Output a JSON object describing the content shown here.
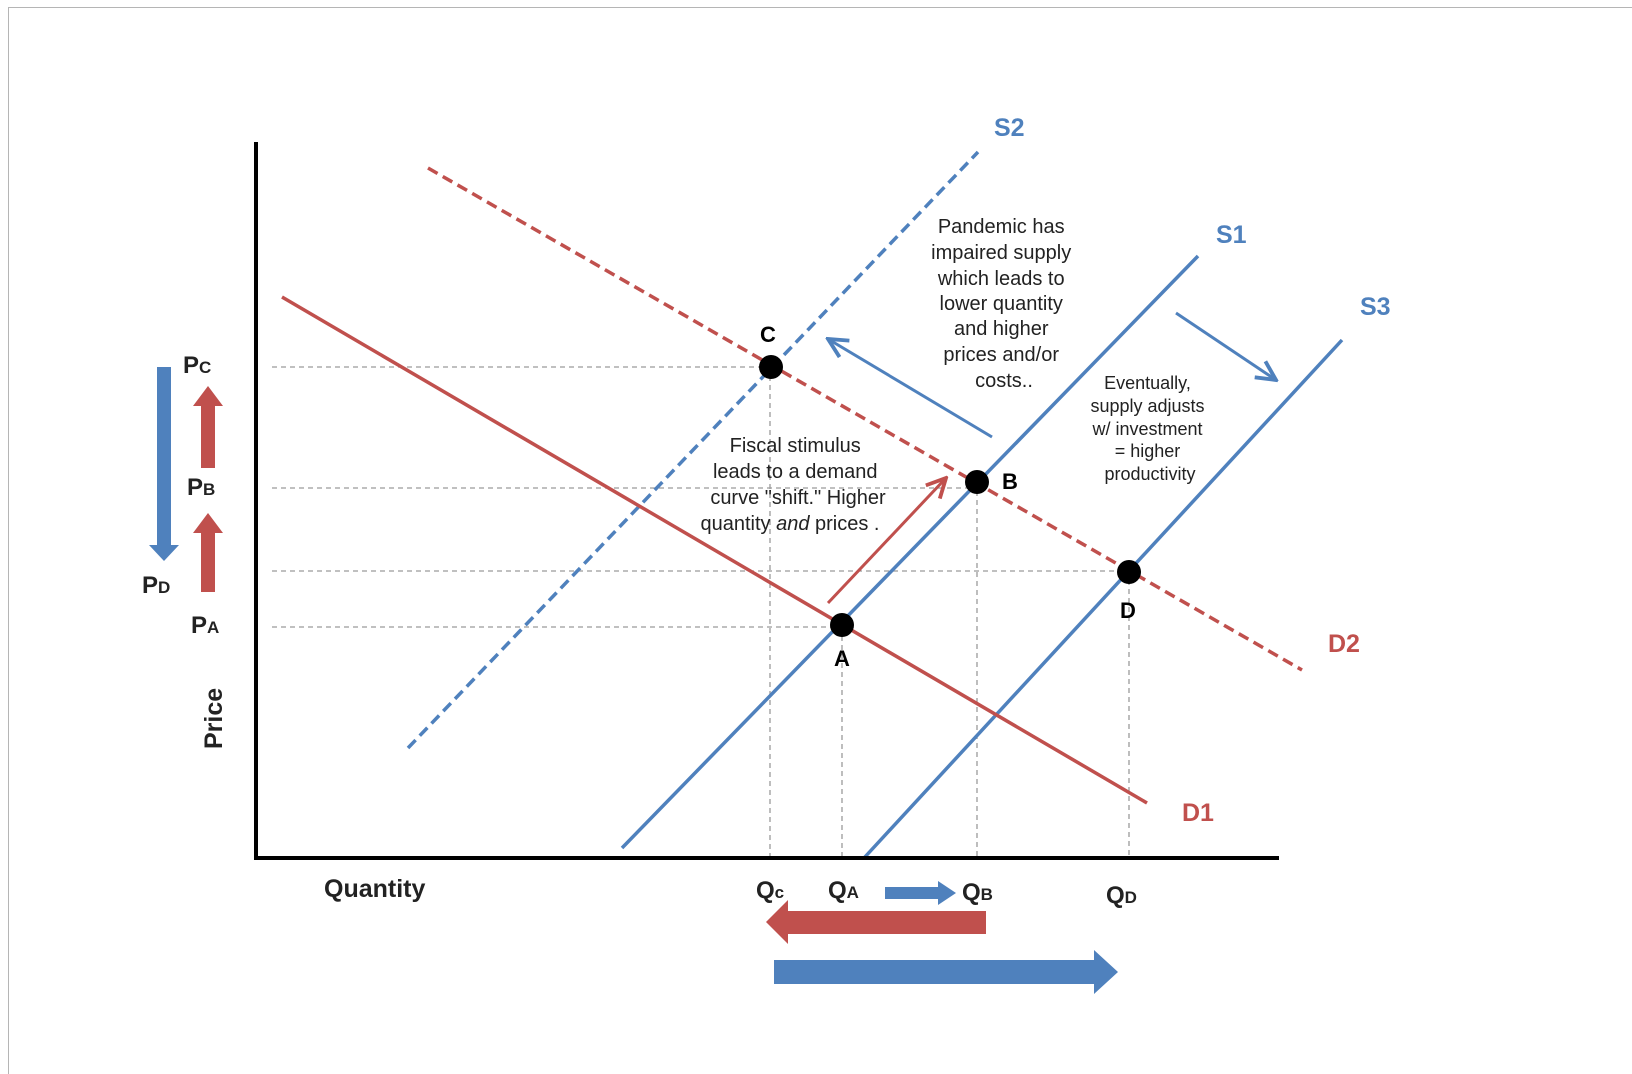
{
  "colors": {
    "supply": "#4f81bd",
    "demand": "#c0504d",
    "axis": "#000000",
    "guide": "#9a9a9a"
  },
  "axes": {
    "x_label": "Quantity",
    "y_label": "Price"
  },
  "curves": [
    {
      "id": "s1",
      "label": "S1",
      "kind": "supply",
      "style": "solid"
    },
    {
      "id": "s2",
      "label": "S2",
      "kind": "supply",
      "style": "dashed"
    },
    {
      "id": "s3",
      "label": "S3",
      "kind": "supply",
      "style": "solid"
    },
    {
      "id": "d1",
      "label": "D1",
      "kind": "demand",
      "style": "solid"
    },
    {
      "id": "d2",
      "label": "D2",
      "kind": "demand",
      "style": "dashed"
    }
  ],
  "points": [
    {
      "id": "a",
      "label": "A"
    },
    {
      "id": "b",
      "label": "B"
    },
    {
      "id": "c",
      "label": "C"
    },
    {
      "id": "d",
      "label": "D"
    }
  ],
  "price_ticks": [
    {
      "id": "pc",
      "main": "P",
      "sub": "C"
    },
    {
      "id": "pb",
      "main": "P",
      "sub": "B"
    },
    {
      "id": "pd",
      "main": "P",
      "sub": "D"
    },
    {
      "id": "pa",
      "main": "P",
      "sub": "A"
    }
  ],
  "quantity_ticks": [
    {
      "id": "qc",
      "main": "Q",
      "sub": "c"
    },
    {
      "id": "qa",
      "main": "Q",
      "sub": "A"
    },
    {
      "id": "qb",
      "main": "Q",
      "sub": "B"
    },
    {
      "id": "qd",
      "main": "Q",
      "sub": "D"
    }
  ],
  "annotations": {
    "pandemic": [
      "Pandemic has",
      "impaired supply",
      "which leads to",
      "lower quantity",
      "and higher",
      "prices and/or",
      "costs.."
    ],
    "stimulus": {
      "lines": [
        "Fiscal stimulus",
        "leads to a demand",
        "curve \"shift.\" Higher"
      ],
      "last_pre": "quantity ",
      "last_em": "and",
      "last_post": " prices ."
    },
    "eventually": [
      "Eventually,",
      "supply adjusts",
      "w/ investment",
      "= higher",
      "productivity"
    ]
  }
}
